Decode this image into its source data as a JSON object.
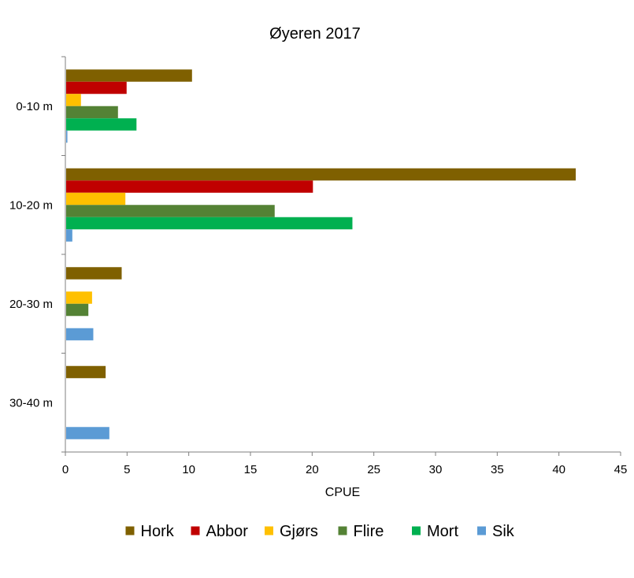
{
  "chart_data": {
    "type": "bar",
    "orientation": "horizontal",
    "title": "Øyeren 2017",
    "xlabel": "CPUE",
    "ylabel": "",
    "xlim": [
      0,
      45
    ],
    "xticks": [
      0,
      5,
      10,
      15,
      20,
      25,
      30,
      35,
      40,
      45
    ],
    "grid": false,
    "legend_position": "bottom",
    "categories": [
      "0-10 m",
      "10-20 m",
      "20-30 m",
      "30-40 m"
    ],
    "series": [
      {
        "name": "Hork",
        "color": "#7f6000",
        "values": [
          10.2,
          41.3,
          4.5,
          3.2
        ]
      },
      {
        "name": "Abbor",
        "color": "#c00000",
        "values": [
          4.9,
          20.0,
          0,
          0
        ]
      },
      {
        "name": "Gjørs",
        "color": "#ffc000",
        "values": [
          1.2,
          4.8,
          2.1,
          0
        ]
      },
      {
        "name": "Flire",
        "color": "#548235",
        "values": [
          4.2,
          16.9,
          1.8,
          0
        ]
      },
      {
        "name": "Mort",
        "color": "#00b050",
        "values": [
          5.7,
          23.2,
          0,
          0
        ]
      },
      {
        "name": "Sik",
        "color": "#5b9bd5",
        "values": [
          0.1,
          0.5,
          2.2,
          3.5
        ]
      }
    ]
  }
}
